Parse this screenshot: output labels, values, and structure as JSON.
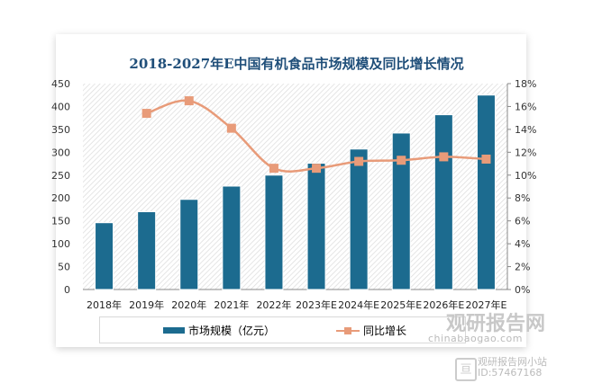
{
  "chart_data": {
    "type": "bar+line",
    "title": "2018-2027年E中国有机食品市场规模及同比增长情况",
    "categories": [
      "2018年",
      "2019年",
      "2020年",
      "2021年",
      "2022年",
      "2023年E",
      "2024年E",
      "2025年E",
      "2026年E",
      "2027年E"
    ],
    "series": [
      {
        "name": "市场规模（亿元）",
        "type": "bar",
        "axis": "left",
        "color": "#1c6b8f",
        "values": [
          146,
          170,
          197,
          226,
          250,
          276,
          307,
          342,
          382,
          425
        ]
      },
      {
        "name": "同比增长",
        "type": "line",
        "axis": "right",
        "color": "#e89b79",
        "values": [
          null,
          15.4,
          16.5,
          14.1,
          10.6,
          10.6,
          11.2,
          11.3,
          11.6,
          11.4
        ]
      }
    ],
    "left_axis": {
      "ylim": [
        0,
        450
      ],
      "ticks": [
        "0",
        "50",
        "100",
        "150",
        "200",
        "250",
        "300",
        "350",
        "400",
        "450"
      ]
    },
    "right_axis": {
      "ylim": [
        0,
        18
      ],
      "ticks": [
        "0%",
        "2%",
        "4%",
        "6%",
        "8%",
        "10%",
        "12%",
        "14%",
        "16%",
        "18%"
      ]
    },
    "legend": "bottom"
  },
  "watermark": {
    "brand": "观研报告网",
    "url": "chinabaogao.com",
    "station": "观研报告网小站",
    "id": "ID:57467168"
  }
}
